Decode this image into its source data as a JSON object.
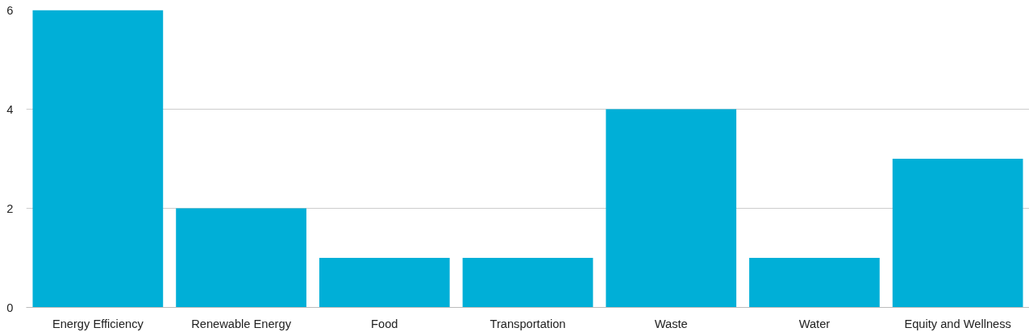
{
  "chart_data": {
    "type": "bar",
    "categories": [
      "Energy Efficiency",
      "Renewable Energy",
      "Food",
      "Transportation",
      "Waste",
      "Water",
      "Equity and Wellness"
    ],
    "values": [
      6,
      2,
      1,
      1,
      4,
      1,
      3
    ],
    "color": "#00afd7",
    "ylim": [
      0,
      6
    ],
    "yticks": [
      0,
      2,
      4,
      6
    ],
    "grid": "y"
  }
}
